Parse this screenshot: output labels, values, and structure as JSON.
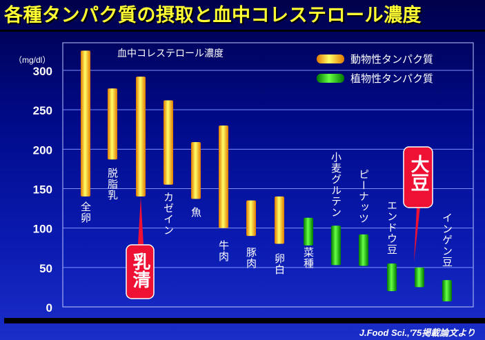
{
  "title": "各種タンパク質の摂取と血中コレステロール濃度",
  "citation": "J.Food Sci.,'75掲載論文より",
  "callouts": {
    "whey": "乳清",
    "soybean": "大豆"
  },
  "chart_data": {
    "type": "range-bar",
    "title": "血中コレステロール濃度",
    "ylabel": "（mg/dl）",
    "ylim": [
      0,
      325
    ],
    "yticks": [
      0,
      50,
      100,
      150,
      200,
      250,
      300
    ],
    "grid": true,
    "legend_position": "top-right",
    "series": [
      {
        "name": "動物性タンパク質",
        "color": "#ffcc00",
        "items": [
          {
            "label": "全卵",
            "low": 140,
            "high": 325
          },
          {
            "label": "脱脂乳",
            "low": 187,
            "high": 277
          },
          {
            "label": "",
            "low": 140,
            "high": 292
          },
          {
            "label": "カゼイン",
            "low": 155,
            "high": 262
          },
          {
            "label": "魚",
            "low": 137,
            "high": 209
          },
          {
            "label": "牛肉",
            "low": 100,
            "high": 230
          },
          {
            "label": "豚肉",
            "low": 90,
            "high": 135
          },
          {
            "label": "卵白",
            "low": 80,
            "high": 140
          }
        ]
      },
      {
        "name": "植物性タンパク質",
        "color": "#33cc33",
        "items": [
          {
            "label": "菜種",
            "low": 78,
            "high": 113
          },
          {
            "label": "小麦グルテン",
            "low": 53,
            "high": 103
          },
          {
            "label": "ピーナッツ",
            "low": 52,
            "high": 92
          },
          {
            "label": "エンドウ豆",
            "low": 20,
            "high": 55
          },
          {
            "label": "",
            "low": 25,
            "high": 50
          },
          {
            "label": "インゲン豆",
            "low": 7,
            "high": 34
          }
        ]
      }
    ]
  }
}
